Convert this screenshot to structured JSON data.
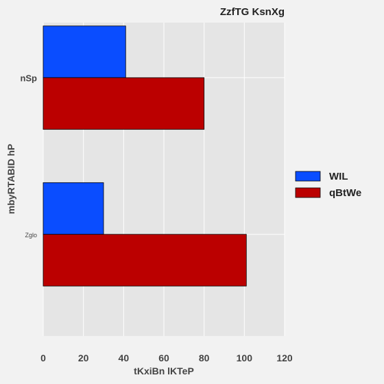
{
  "chart_data": {
    "type": "bar",
    "orientation": "horizontal",
    "title": "ZzfTG KsnXg",
    "xlabel": "tKxiBn lKTeP",
    "ylabel": "mbyRTABID hP",
    "categories": [
      "nSp",
      "Zglo"
    ],
    "series": [
      {
        "name": "WIL",
        "values": [
          41,
          30
        ],
        "color": "#0a4dff"
      },
      {
        "name": "qBtWe",
        "values": [
          80,
          101
        ],
        "color": "#bb0000"
      }
    ],
    "xlim": [
      0,
      120
    ],
    "xticks": [
      "0",
      "20",
      "40",
      "60",
      "80",
      "100",
      "120"
    ],
    "grid": true,
    "legend_position": "right"
  }
}
